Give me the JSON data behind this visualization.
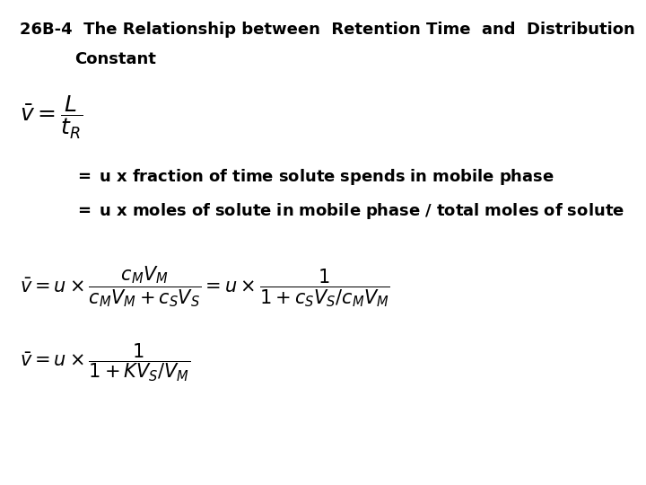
{
  "title_line1": "26B-4  The Relationship between  Retention Time  and  Distribution",
  "title_line2": "Constant",
  "bg_color": "#ffffff",
  "text_color": "#000000",
  "title_fontsize": 13,
  "body_fontsize": 13,
  "eq_fontsize": 15
}
